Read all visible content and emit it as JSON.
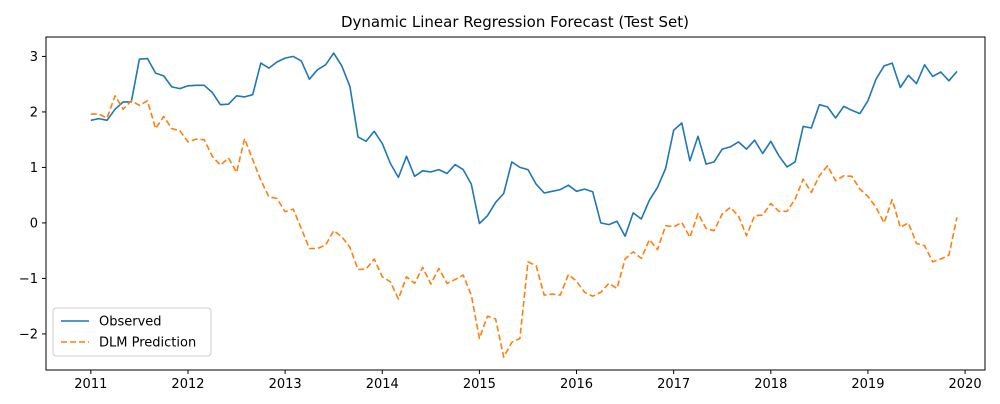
{
  "chart_data": {
    "type": "line",
    "title": "Dynamic Linear Regression Forecast (Test Set)",
    "xlabel": "",
    "ylabel": "",
    "x_type": "date",
    "xlim": [
      "2010-07-15",
      "2020-03-15"
    ],
    "ylim": [
      -2.65,
      3.35
    ],
    "x_ticks": [
      "2011",
      "2012",
      "2013",
      "2014",
      "2015",
      "2016",
      "2017",
      "2018",
      "2019",
      "2020"
    ],
    "y_ticks": [
      "−2",
      "−1",
      "0",
      "1",
      "2",
      "3"
    ],
    "grid": false,
    "legend_position": "lower-left",
    "x": [
      "2011-01",
      "2011-02",
      "2011-03",
      "2011-04",
      "2011-05",
      "2011-06",
      "2011-07",
      "2011-08",
      "2011-09",
      "2011-10",
      "2011-11",
      "2011-12",
      "2012-01",
      "2012-02",
      "2012-03",
      "2012-04",
      "2012-05",
      "2012-06",
      "2012-07",
      "2012-08",
      "2012-09",
      "2012-10",
      "2012-11",
      "2012-12",
      "2013-01",
      "2013-02",
      "2013-03",
      "2013-04",
      "2013-05",
      "2013-06",
      "2013-07",
      "2013-08",
      "2013-09",
      "2013-10",
      "2013-11",
      "2013-12",
      "2014-01",
      "2014-02",
      "2014-03",
      "2014-04",
      "2014-05",
      "2014-06",
      "2014-07",
      "2014-08",
      "2014-09",
      "2014-10",
      "2014-11",
      "2014-12",
      "2015-01",
      "2015-02",
      "2015-03",
      "2015-04",
      "2015-05",
      "2015-06",
      "2015-07",
      "2015-08",
      "2015-09",
      "2015-10",
      "2015-11",
      "2015-12",
      "2016-01",
      "2016-02",
      "2016-03",
      "2016-04",
      "2016-05",
      "2016-06",
      "2016-07",
      "2016-08",
      "2016-09",
      "2016-10",
      "2016-11",
      "2016-12",
      "2017-01",
      "2017-02",
      "2017-03",
      "2017-04",
      "2017-05",
      "2017-06",
      "2017-07",
      "2017-08",
      "2017-09",
      "2017-10",
      "2017-11",
      "2017-12",
      "2018-01",
      "2018-02",
      "2018-03",
      "2018-04",
      "2018-05",
      "2018-06",
      "2018-07",
      "2018-08",
      "2018-09",
      "2018-10",
      "2018-11",
      "2018-12",
      "2019-01",
      "2019-02",
      "2019-03",
      "2019-04",
      "2019-05",
      "2019-06",
      "2019-07",
      "2019-08",
      "2019-09",
      "2019-10",
      "2019-11",
      "2019-12"
    ],
    "series": [
      {
        "name": "Observed",
        "color": "#1f77b4",
        "style": "solid",
        "values": [
          1.85,
          1.88,
          1.85,
          2.05,
          2.18,
          2.18,
          2.95,
          2.96,
          2.7,
          2.65,
          2.45,
          2.42,
          2.47,
          2.48,
          2.48,
          2.35,
          2.13,
          2.14,
          2.29,
          2.27,
          2.31,
          2.88,
          2.79,
          2.9,
          2.97,
          3.0,
          2.92,
          2.59,
          2.76,
          2.85,
          3.06,
          2.83,
          2.46,
          1.55,
          1.47,
          1.65,
          1.43,
          1.07,
          0.82,
          1.2,
          0.84,
          0.94,
          0.92,
          0.96,
          0.89,
          1.05,
          0.96,
          0.7,
          -0.01,
          0.13,
          0.37,
          0.53,
          1.1,
          1.0,
          0.96,
          0.7,
          0.54,
          0.57,
          0.6,
          0.68,
          0.57,
          0.61,
          0.56,
          0.0,
          -0.03,
          0.03,
          -0.24,
          0.18,
          0.07,
          0.41,
          0.64,
          0.98,
          1.67,
          1.8,
          1.12,
          1.56,
          1.06,
          1.1,
          1.33,
          1.37,
          1.46,
          1.33,
          1.49,
          1.25,
          1.47,
          1.21,
          1.01,
          1.1,
          1.74,
          1.71,
          2.13,
          2.09,
          1.89,
          2.1,
          2.03,
          1.97,
          2.2,
          2.59,
          2.83,
          2.88,
          2.44,
          2.66,
          2.51,
          2.85,
          2.64,
          2.72,
          2.56,
          2.73
        ]
      },
      {
        "name": "DLM Prediction",
        "color": "#ff7f0e",
        "style": "dashed",
        "values": [
          1.96,
          1.96,
          1.89,
          2.29,
          2.05,
          2.2,
          2.12,
          2.2,
          1.7,
          1.92,
          1.7,
          1.66,
          1.46,
          1.51,
          1.5,
          1.2,
          1.04,
          1.17,
          0.91,
          1.52,
          1.14,
          0.77,
          0.47,
          0.44,
          0.2,
          0.25,
          -0.1,
          -0.46,
          -0.46,
          -0.4,
          -0.14,
          -0.25,
          -0.44,
          -0.84,
          -0.83,
          -0.65,
          -0.97,
          -1.06,
          -1.37,
          -0.97,
          -1.09,
          -0.8,
          -1.1,
          -0.82,
          -1.09,
          -1.02,
          -0.94,
          -1.3,
          -2.08,
          -1.68,
          -1.73,
          -2.42,
          -2.15,
          -2.08,
          -0.7,
          -0.77,
          -1.3,
          -1.28,
          -1.3,
          -0.93,
          -1.05,
          -1.25,
          -1.32,
          -1.25,
          -1.09,
          -1.18,
          -0.65,
          -0.52,
          -0.64,
          -0.3,
          -0.48,
          -0.05,
          -0.07,
          0.01,
          -0.26,
          0.17,
          -0.1,
          -0.14,
          0.16,
          0.28,
          0.13,
          -0.23,
          0.13,
          0.14,
          0.35,
          0.21,
          0.21,
          0.43,
          0.79,
          0.55,
          0.85,
          1.03,
          0.76,
          0.85,
          0.84,
          0.61,
          0.48,
          0.28,
          0.0,
          0.42,
          -0.08,
          0.0,
          -0.37,
          -0.41,
          -0.7,
          -0.65,
          -0.58,
          0.1
        ]
      }
    ]
  }
}
